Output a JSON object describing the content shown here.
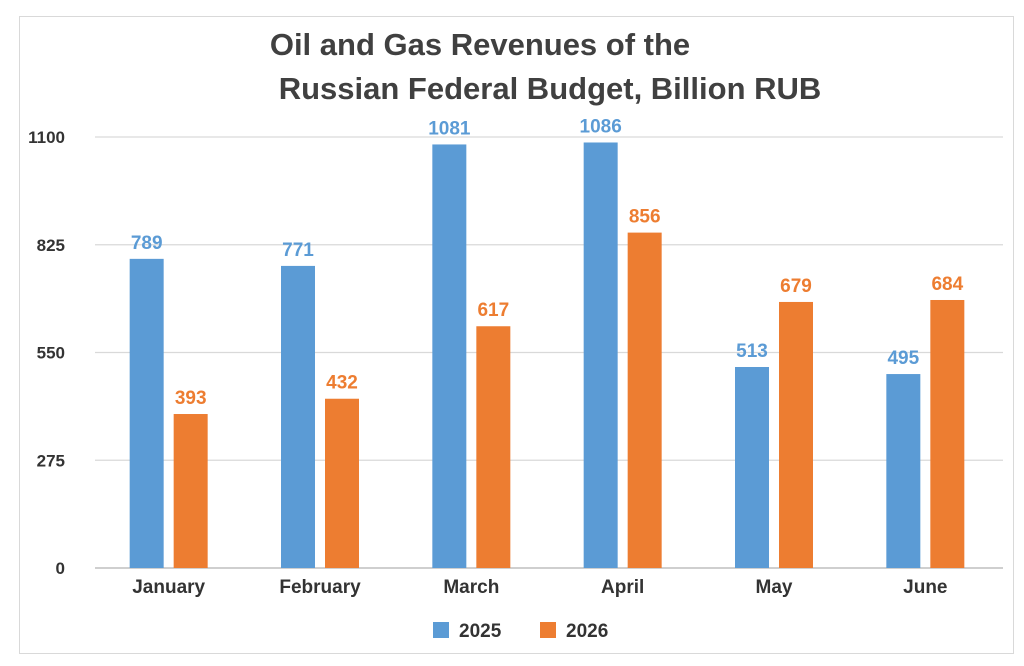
{
  "chart_data": {
    "type": "bar",
    "title_line1": "Oil and Gas Revenues of the",
    "title_line2": "Russian Federal Budget, Billion RUB",
    "xlabel": "",
    "ylabel": "",
    "ylim": [
      0,
      1100
    ],
    "yticks": [
      0,
      275,
      550,
      825,
      1100
    ],
    "grid": true,
    "legend_position": "bottom",
    "categories": [
      "January",
      "February",
      "March",
      "April",
      "May",
      "June"
    ],
    "series": [
      {
        "name": "2025",
        "color": "#5b9bd5",
        "values": [
          789,
          771,
          1081,
          1086,
          513,
          495
        ]
      },
      {
        "name": "2026",
        "color": "#ed7d31",
        "values": [
          393,
          432,
          617,
          856,
          679,
          684
        ]
      }
    ]
  }
}
